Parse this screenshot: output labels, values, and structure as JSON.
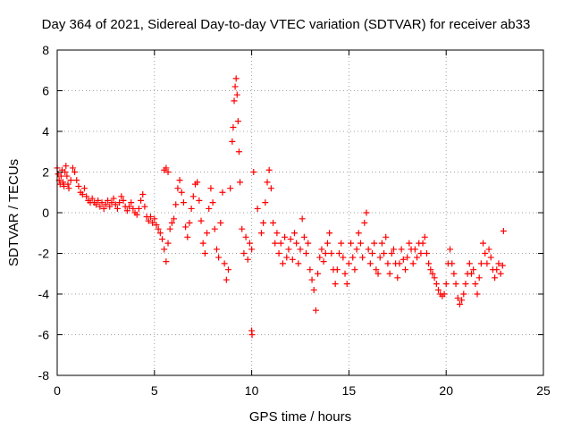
{
  "chart_data": {
    "type": "scatter",
    "title": "Day 364 of 2021, Sidereal Day-to-day VTEC variation (SDTVAR) for receiver ab33",
    "xlabel": "GPS time / hours",
    "ylabel": "SDTVAR / TECUs",
    "xlim": [
      0,
      25
    ],
    "ylim": [
      -8,
      8
    ],
    "xticks": [
      0,
      5,
      10,
      15,
      20,
      25
    ],
    "yticks": [
      -8,
      -6,
      -4,
      -2,
      0,
      2,
      4,
      6,
      8
    ],
    "x_tick_labels": [
      "0",
      "5",
      "10",
      "15",
      "20",
      "25"
    ],
    "y_tick_labels": [
      "-8",
      "-6",
      "-4",
      "-2",
      "0",
      "2",
      "4",
      "6",
      "8"
    ],
    "grid": true,
    "marker": "+",
    "color": "#ff0000",
    "series": [
      {
        "name": "SDTVAR",
        "points": [
          [
            0.0,
            2.2
          ],
          [
            0.05,
            1.9
          ],
          [
            0.1,
            1.6
          ],
          [
            0.15,
            1.4
          ],
          [
            0.2,
            1.8
          ],
          [
            0.25,
            2.1
          ],
          [
            0.3,
            1.5
          ],
          [
            0.35,
            1.3
          ],
          [
            0.4,
            2.0
          ],
          [
            0.45,
            2.3
          ],
          [
            0.5,
            1.8
          ],
          [
            0.55,
            1.4
          ],
          [
            0.6,
            1.2
          ],
          [
            0.7,
            1.6
          ],
          [
            0.8,
            2.2
          ],
          [
            0.9,
            2.0
          ],
          [
            1.0,
            1.6
          ],
          [
            1.1,
            1.3
          ],
          [
            1.2,
            1.0
          ],
          [
            1.3,
            0.9
          ],
          [
            1.4,
            1.2
          ],
          [
            1.5,
            0.8
          ],
          [
            1.6,
            0.6
          ],
          [
            1.7,
            0.5
          ],
          [
            1.8,
            0.7
          ],
          [
            1.9,
            0.5
          ],
          [
            2.0,
            0.4
          ],
          [
            2.1,
            0.6
          ],
          [
            2.2,
            0.3
          ],
          [
            2.3,
            0.5
          ],
          [
            2.4,
            0.2
          ],
          [
            2.5,
            0.4
          ],
          [
            2.6,
            0.6
          ],
          [
            2.7,
            0.3
          ],
          [
            2.8,
            0.5
          ],
          [
            2.9,
            0.7
          ],
          [
            3.0,
            0.4
          ],
          [
            3.1,
            0.2
          ],
          [
            3.2,
            0.5
          ],
          [
            3.3,
            0.8
          ],
          [
            3.4,
            0.6
          ],
          [
            3.5,
            0.3
          ],
          [
            3.6,
            0.1
          ],
          [
            3.7,
            0.3
          ],
          [
            3.8,
            0.5
          ],
          [
            3.9,
            0.2
          ],
          [
            4.0,
            0.0
          ],
          [
            4.1,
            -0.1
          ],
          [
            4.2,
            0.2
          ],
          [
            4.3,
            0.6
          ],
          [
            4.4,
            0.9
          ],
          [
            4.5,
            0.3
          ],
          [
            4.6,
            -0.2
          ],
          [
            4.7,
            -0.4
          ],
          [
            4.8,
            -0.2
          ],
          [
            4.9,
            -0.5
          ],
          [
            5.0,
            -0.3
          ],
          [
            5.1,
            -0.6
          ],
          [
            5.2,
            -0.8
          ],
          [
            5.3,
            -1.0
          ],
          [
            5.4,
            -1.3
          ],
          [
            5.5,
            2.1
          ],
          [
            5.6,
            2.2
          ],
          [
            5.7,
            2.0
          ],
          [
            5.5,
            -1.8
          ],
          [
            5.6,
            -2.4
          ],
          [
            5.7,
            -1.5
          ],
          [
            5.8,
            -0.8
          ],
          [
            5.9,
            -0.5
          ],
          [
            6.0,
            -0.3
          ],
          [
            6.1,
            0.4
          ],
          [
            6.2,
            1.2
          ],
          [
            6.3,
            1.6
          ],
          [
            6.4,
            1.0
          ],
          [
            6.5,
            0.5
          ],
          [
            6.6,
            -0.7
          ],
          [
            6.7,
            -1.2
          ],
          [
            6.8,
            -0.5
          ],
          [
            6.9,
            0.2
          ],
          [
            7.0,
            0.8
          ],
          [
            7.1,
            1.4
          ],
          [
            7.2,
            1.5
          ],
          [
            7.3,
            0.6
          ],
          [
            7.4,
            -0.4
          ],
          [
            7.5,
            -1.5
          ],
          [
            7.6,
            -2.0
          ],
          [
            7.7,
            -1.0
          ],
          [
            7.8,
            0.2
          ],
          [
            7.9,
            1.2
          ],
          [
            8.0,
            0.5
          ],
          [
            8.1,
            -0.8
          ],
          [
            8.2,
            -1.8
          ],
          [
            8.3,
            -2.2
          ],
          [
            8.4,
            -0.5
          ],
          [
            8.5,
            1.0
          ],
          [
            8.6,
            -2.5
          ],
          [
            8.7,
            -3.3
          ],
          [
            8.8,
            -2.8
          ],
          [
            8.9,
            1.2
          ],
          [
            9.0,
            3.5
          ],
          [
            9.05,
            4.2
          ],
          [
            9.1,
            5.5
          ],
          [
            9.15,
            6.2
          ],
          [
            9.2,
            6.6
          ],
          [
            9.25,
            5.8
          ],
          [
            9.3,
            4.5
          ],
          [
            9.35,
            3.0
          ],
          [
            9.4,
            1.5
          ],
          [
            9.5,
            -0.8
          ],
          [
            9.6,
            -2.0
          ],
          [
            9.7,
            -1.2
          ],
          [
            9.8,
            -2.3
          ],
          [
            9.9,
            -1.5
          ],
          [
            10.0,
            -1.8
          ],
          [
            10.0,
            -5.8
          ],
          [
            10.02,
            -6.0
          ],
          [
            10.1,
            2.0
          ],
          [
            10.3,
            0.2
          ],
          [
            10.5,
            -1.0
          ],
          [
            10.6,
            -0.5
          ],
          [
            10.7,
            0.5
          ],
          [
            10.8,
            1.5
          ],
          [
            10.9,
            2.1
          ],
          [
            11.0,
            1.2
          ],
          [
            11.1,
            -0.5
          ],
          [
            11.2,
            -1.5
          ],
          [
            11.3,
            -1.0
          ],
          [
            11.4,
            -2.0
          ],
          [
            11.5,
            -1.5
          ],
          [
            11.6,
            -2.5
          ],
          [
            11.7,
            -1.2
          ],
          [
            11.8,
            -2.2
          ],
          [
            11.9,
            -1.8
          ],
          [
            12.0,
            -1.3
          ],
          [
            12.1,
            -2.3
          ],
          [
            12.2,
            -1.0
          ],
          [
            12.3,
            -1.5
          ],
          [
            12.4,
            -2.5
          ],
          [
            12.5,
            -1.8
          ],
          [
            12.6,
            -0.3
          ],
          [
            12.7,
            -1.2
          ],
          [
            12.8,
            -2.0
          ],
          [
            12.9,
            -1.5
          ],
          [
            13.0,
            -2.8
          ],
          [
            13.1,
            -3.3
          ],
          [
            13.2,
            -3.8
          ],
          [
            13.3,
            -4.8
          ],
          [
            13.4,
            -3.0
          ],
          [
            13.5,
            -2.2
          ],
          [
            13.6,
            -1.8
          ],
          [
            13.7,
            -2.4
          ],
          [
            13.8,
            -2.0
          ],
          [
            13.9,
            -1.5
          ],
          [
            14.0,
            -1.0
          ],
          [
            14.1,
            -2.0
          ],
          [
            14.2,
            -2.8
          ],
          [
            14.3,
            -3.5
          ],
          [
            14.4,
            -2.8
          ],
          [
            14.5,
            -2.0
          ],
          [
            14.6,
            -1.5
          ],
          [
            14.7,
            -2.2
          ],
          [
            14.8,
            -3.0
          ],
          [
            14.9,
            -3.5
          ],
          [
            15.0,
            -2.5
          ],
          [
            15.1,
            -1.5
          ],
          [
            15.2,
            -2.2
          ],
          [
            15.3,
            -2.8
          ],
          [
            15.4,
            -1.8
          ],
          [
            15.5,
            -1.0
          ],
          [
            15.6,
            -1.5
          ],
          [
            15.7,
            -2.2
          ],
          [
            15.8,
            -0.5
          ],
          [
            15.9,
            0.0
          ],
          [
            16.0,
            -1.8
          ],
          [
            16.1,
            -2.5
          ],
          [
            16.2,
            -2.0
          ],
          [
            16.3,
            -1.5
          ],
          [
            16.4,
            -2.8
          ],
          [
            16.5,
            -3.0
          ],
          [
            16.6,
            -2.2
          ],
          [
            16.7,
            -1.5
          ],
          [
            16.8,
            -2.0
          ],
          [
            16.9,
            -1.2
          ],
          [
            17.0,
            -2.5
          ],
          [
            17.1,
            -3.0
          ],
          [
            17.2,
            -2.0
          ],
          [
            17.3,
            -1.8
          ],
          [
            17.4,
            -2.5
          ],
          [
            17.5,
            -3.2
          ],
          [
            17.6,
            -2.5
          ],
          [
            17.7,
            -1.8
          ],
          [
            17.8,
            -2.3
          ],
          [
            17.9,
            -2.8
          ],
          [
            18.0,
            -2.2
          ],
          [
            18.1,
            -1.5
          ],
          [
            18.2,
            -1.8
          ],
          [
            18.3,
            -2.5
          ],
          [
            18.4,
            -1.8
          ],
          [
            18.5,
            -2.2
          ],
          [
            18.6,
            -1.5
          ],
          [
            18.7,
            -2.0
          ],
          [
            18.8,
            -1.5
          ],
          [
            18.9,
            -1.2
          ],
          [
            19.0,
            -2.0
          ],
          [
            19.1,
            -2.5
          ],
          [
            19.2,
            -2.8
          ],
          [
            19.3,
            -3.0
          ],
          [
            19.4,
            -3.2
          ],
          [
            19.5,
            -3.5
          ],
          [
            19.6,
            -3.8
          ],
          [
            19.7,
            -4.0
          ],
          [
            19.8,
            -4.1
          ],
          [
            19.9,
            -4.0
          ],
          [
            20.0,
            -3.5
          ],
          [
            20.1,
            -2.5
          ],
          [
            20.2,
            -1.8
          ],
          [
            20.3,
            -2.5
          ],
          [
            20.4,
            -3.0
          ],
          [
            20.5,
            -3.5
          ],
          [
            20.6,
            -4.2
          ],
          [
            20.7,
            -4.5
          ],
          [
            20.8,
            -4.3
          ],
          [
            20.9,
            -4.0
          ],
          [
            21.0,
            -3.5
          ],
          [
            21.1,
            -3.0
          ],
          [
            21.2,
            -2.5
          ],
          [
            21.3,
            -3.0
          ],
          [
            21.4,
            -2.8
          ],
          [
            21.5,
            -3.5
          ],
          [
            21.6,
            -4.0
          ],
          [
            21.7,
            -3.2
          ],
          [
            21.8,
            -2.5
          ],
          [
            21.9,
            -1.5
          ],
          [
            22.0,
            -2.0
          ],
          [
            22.1,
            -2.5
          ],
          [
            22.2,
            -1.8
          ],
          [
            22.3,
            -2.2
          ],
          [
            22.4,
            -2.8
          ],
          [
            22.5,
            -3.2
          ],
          [
            22.6,
            -2.8
          ],
          [
            22.7,
            -2.5
          ],
          [
            22.8,
            -3.0
          ],
          [
            22.9,
            -2.6
          ],
          [
            22.95,
            -0.9
          ]
        ]
      }
    ]
  }
}
